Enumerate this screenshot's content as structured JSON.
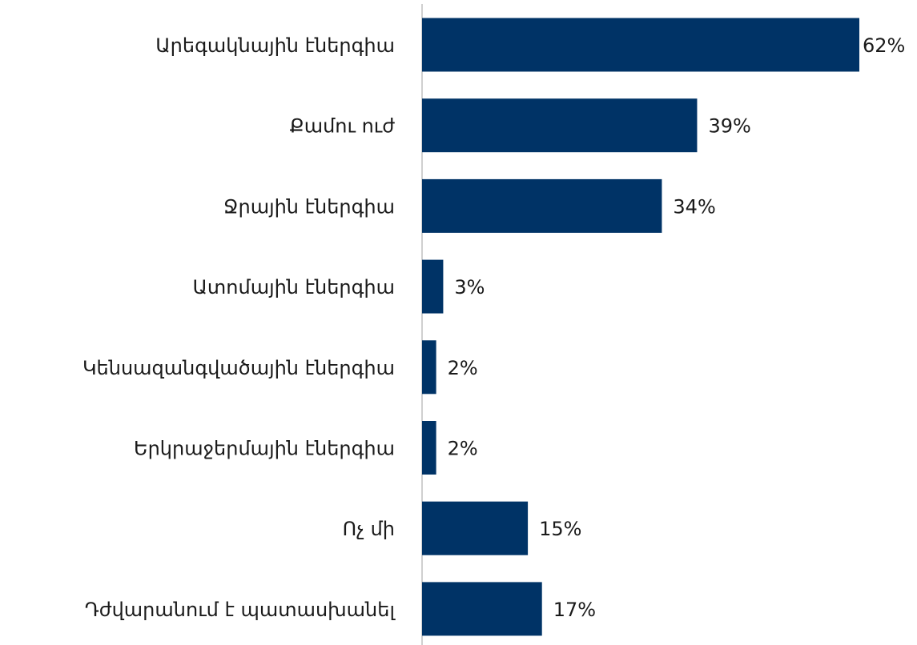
{
  "chart_data": {
    "type": "bar",
    "orientation": "horizontal",
    "categories": [
      "Արեգակնային էներգիա",
      "Քամու ուժ",
      "Ջրային էներգիա",
      "Ատոմային էներգիա",
      "Կենսազանգվածային էներգիա",
      "Երկրաջերմային էներգիա",
      "Ոչ մի",
      "Դժվարանում է պատասխանել"
    ],
    "values": [
      62,
      39,
      34,
      3,
      2,
      2,
      15,
      17
    ],
    "value_labels": [
      "62%",
      "39%",
      "34%",
      "3%",
      "2%",
      "2%",
      "15%",
      "17%"
    ],
    "color": "#003366"
  }
}
